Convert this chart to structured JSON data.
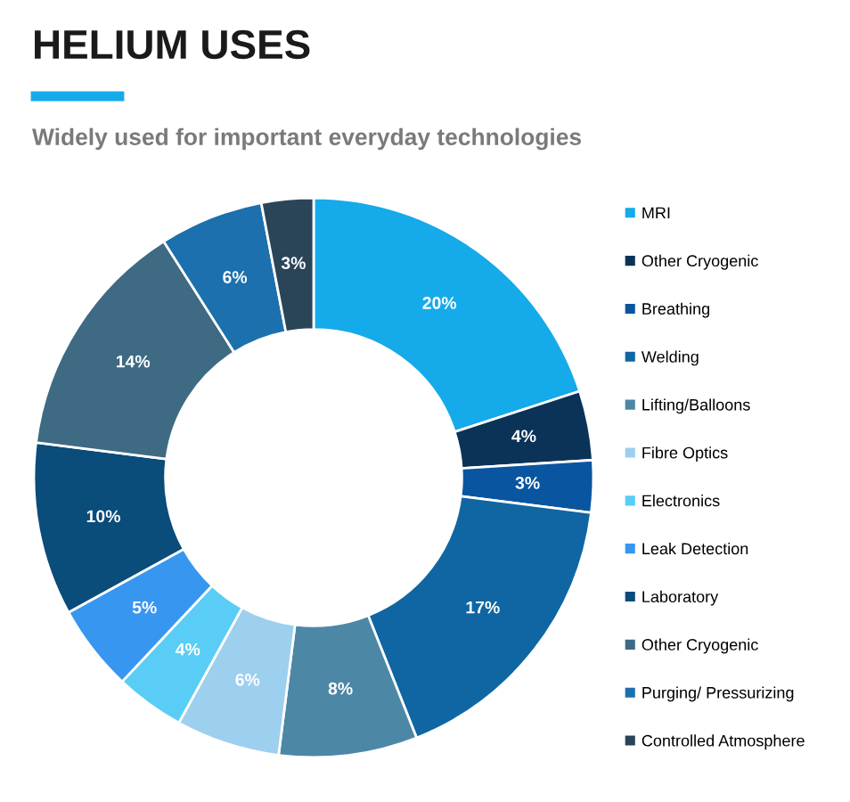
{
  "chart_data": {
    "type": "donut",
    "title": "HELIUM USES",
    "subtitle": "Widely used for important everyday technologies",
    "categories": [
      "MRI",
      "Other Cryogenic",
      "Breathing",
      "Welding",
      "Lifting/Balloons",
      "Fibre Optics",
      "Electronics",
      "Leak Detection",
      "Laboratory",
      "Other Cryogenic",
      "Purging/ Pressurizing",
      "Controlled Atmosphere"
    ],
    "values": [
      20,
      4,
      3,
      17,
      8,
      6,
      4,
      5,
      10,
      14,
      6,
      3
    ],
    "colors": [
      "#15aaea",
      "#0b3357",
      "#0a55a0",
      "#0f66a3",
      "#4d87a6",
      "#9dcfef",
      "#5acdf6",
      "#3796f0",
      "#0a4c7a",
      "#3e6a84",
      "#1c70ad",
      "#2a4558"
    ],
    "value_labels": [
      "20%",
      "4%",
      "3%",
      "17%",
      "8%",
      "6%",
      "4%",
      "5%",
      "10%",
      "14%",
      "6%",
      "3%"
    ],
    "legend": "right"
  }
}
